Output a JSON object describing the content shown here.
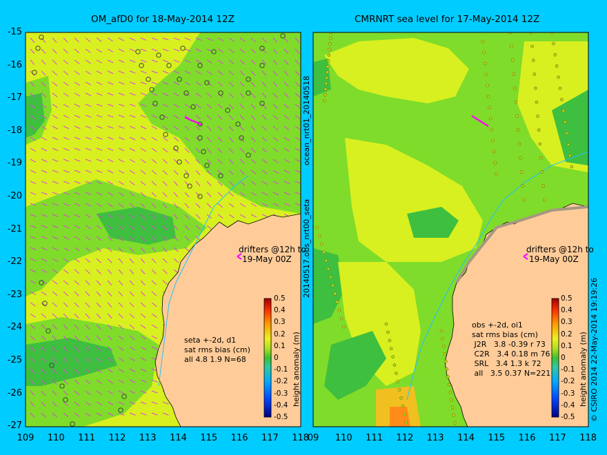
{
  "left_panel": {
    "title": "OM_afD0 for 18-May-2014 12Z",
    "drifters_label_1": "drifters @12h to",
    "drifters_label_2": "19-May 00Z",
    "stats": [
      "seta +-2d, d1",
      "sat rms bias (cm)",
      "all 4.8 1.9 N=68"
    ]
  },
  "right_panel": {
    "title": "CMRNRT sea level  for 17-May-2014 12Z",
    "drifters_label_1": "drifters @12h to",
    "drifters_label_2": "19-May 00Z",
    "stats": [
      "obs +-2d, oi1",
      "sat rms bias (cm)",
      " J2R   3.8 -0.39 r 73",
      " C2R   3.4 0.18 m 76",
      " SRL   3.4 1.3 k 72",
      " all   3.5 0.37 N=221"
    ]
  },
  "vertical_labels": {
    "upper": "ocean_nrt01_20140518",
    "lower": "20140517.obs_nrt00_seta",
    "credit": "© CSIRO 2014   22-May-2014 19:19:26"
  },
  "colorbar": {
    "label": "height anomaly (m)",
    "ticks": [
      "0.5",
      "0.4",
      "0.3",
      "0.2",
      "0.1",
      "0",
      "-0.1",
      "-0.2",
      "-0.3",
      "-0.4",
      "-0.5"
    ]
  },
  "axes": {
    "y_ticks": [
      "-15",
      "-16",
      "-17",
      "-18",
      "-19",
      "-20",
      "-21",
      "-22",
      "-23",
      "-24",
      "-25",
      "-26",
      "-27"
    ],
    "x_ticks_left": [
      "109",
      "110",
      "111",
      "112",
      "113",
      "114",
      "115",
      "116",
      "117",
      "118"
    ],
    "x_ticks_right": [
      "09",
      "110",
      "111",
      "112",
      "113",
      "114",
      "115",
      "116",
      "117",
      "118"
    ]
  },
  "colors": {
    "background": "#00ccff",
    "land": "#ffcc99",
    "coast_shelf": "#a89880",
    "arrows": "#e040e0",
    "drifters": "#ff00ff",
    "contour_yellow": "#d8f020",
    "contour_green": "#7fdc2a",
    "contour_dark_green": "#3fbf3f"
  }
}
